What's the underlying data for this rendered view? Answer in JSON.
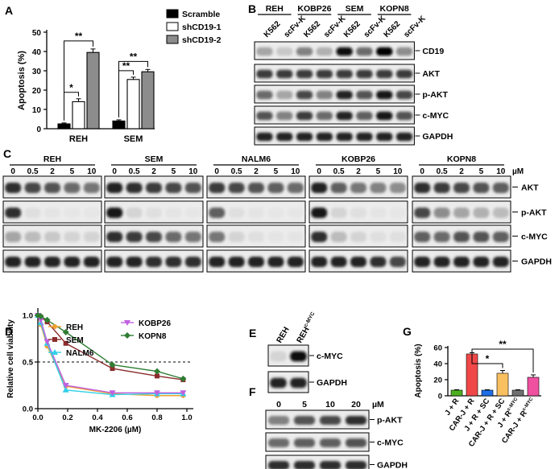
{
  "panels": {
    "A": "A",
    "B": "B",
    "C": "C",
    "D": "D",
    "E": "E",
    "F": "F",
    "G": "G"
  },
  "sig": {
    "one": "*",
    "two": "**"
  },
  "panel_A": {
    "chart_data": {
      "type": "bar",
      "categories": [
        "REH",
        "SEM"
      ],
      "series": [
        {
          "name": "Scramble",
          "values": [
            2.5,
            4
          ],
          "errors": [
            0.5,
            0.6
          ],
          "color": "#000000"
        },
        {
          "name": "shCD19-1",
          "values": [
            14,
            25.5
          ],
          "errors": [
            1.5,
            1.2
          ],
          "color": "#ffffff"
        },
        {
          "name": "shCD19-2",
          "values": [
            39.5,
            29.5
          ],
          "errors": [
            1.8,
            1.2
          ],
          "color": "#8c8c8c"
        }
      ],
      "ylabel": "Apoptosis (%)",
      "ylim": [
        0,
        50
      ],
      "yticks": [
        0,
        10,
        20,
        30,
        40,
        50
      ],
      "legend": "top-right",
      "significance": [
        {
          "category": "REH",
          "from": "Scramble",
          "to": "shCD19-1",
          "label": "*"
        },
        {
          "category": "REH",
          "from": "Scramble",
          "to": "shCD19-2",
          "label": "**"
        },
        {
          "category": "SEM",
          "from": "Scramble",
          "to": "shCD19-1",
          "label": "**"
        },
        {
          "category": "SEM",
          "from": "Scramble",
          "to": "shCD19-2",
          "label": "**"
        }
      ]
    }
  },
  "panel_B": {
    "cell_groups": [
      "REH",
      "KOBP26",
      "SEM",
      "KOPN8"
    ],
    "lanes": [
      "K562",
      "scFv-K",
      "K562",
      "scFv-K",
      "K562",
      "scFv-K",
      "K562",
      "scFv-K"
    ],
    "proteins": [
      "CD19",
      "AKT",
      "p-AKT",
      "c-MYC",
      "GAPDH"
    ],
    "band_intensity": [
      [
        0.3,
        0.15,
        0.45,
        0.25,
        0.95,
        0.55,
        0.98,
        0.4
      ],
      [
        0.75,
        0.75,
        0.75,
        0.75,
        0.75,
        0.75,
        0.75,
        0.75
      ],
      [
        0.55,
        0.3,
        0.7,
        0.45,
        0.85,
        0.65,
        0.9,
        0.7
      ],
      [
        0.65,
        0.45,
        0.75,
        0.55,
        0.85,
        0.6,
        0.9,
        0.65
      ],
      [
        0.85,
        0.85,
        0.85,
        0.85,
        0.85,
        0.85,
        0.85,
        0.85
      ]
    ]
  },
  "panel_C": {
    "cell_lines": [
      "REH",
      "SEM",
      "NALM6",
      "KOBP26",
      "KOPN8"
    ],
    "doses": [
      "0",
      "0.5",
      "2",
      "5",
      "10"
    ],
    "unit": "µM",
    "proteins": [
      "AKT",
      "p-AKT",
      "c-MYC",
      "GAPDH"
    ],
    "band_intensity": [
      [
        [
          0.8,
          0.7,
          0.65,
          0.55,
          0.5
        ],
        [
          0.85,
          0.8,
          0.75,
          0.7,
          0.65
        ],
        [
          0.75,
          0.7,
          0.65,
          0.6,
          0.55
        ],
        [
          0.85,
          0.6,
          0.5,
          0.45,
          0.4
        ],
        [
          0.8,
          0.75,
          0.7,
          0.65,
          0.6
        ]
      ],
      [
        [
          0.8,
          0.05,
          0.03,
          0.02,
          0.02
        ],
        [
          0.9,
          0.1,
          0.05,
          0.03,
          0.02
        ],
        [
          0.6,
          0.05,
          0.03,
          0.02,
          0.02
        ],
        [
          0.9,
          0.1,
          0.05,
          0.03,
          0.02
        ],
        [
          0.7,
          0.4,
          0.3,
          0.25,
          0.2
        ]
      ],
      [
        [
          0.3,
          0.2,
          0.15,
          0.1,
          0.1
        ],
        [
          0.8,
          0.75,
          0.7,
          0.55,
          0.5
        ],
        [
          0.5,
          0.1,
          0.05,
          0.03,
          0.03
        ],
        [
          0.8,
          0.2,
          0.1,
          0.05,
          0.05
        ],
        [
          0.6,
          0.55,
          0.65,
          0.65,
          0.6
        ]
      ],
      [
        [
          0.85,
          0.85,
          0.85,
          0.85,
          0.85
        ],
        [
          0.85,
          0.85,
          0.8,
          0.8,
          0.8
        ],
        [
          0.85,
          0.85,
          0.85,
          0.85,
          0.85
        ],
        [
          0.85,
          0.85,
          0.85,
          0.8,
          0.7
        ],
        [
          0.85,
          0.85,
          0.85,
          0.85,
          0.85
        ]
      ]
    ]
  },
  "panel_D": {
    "chart_data": {
      "type": "line",
      "xlabel": "MK-2206 (µM)",
      "ylabel": "Relative cell viability",
      "xlim": [
        0,
        1.0
      ],
      "ylim": [
        0,
        1.0
      ],
      "xticks": [
        "0.0",
        "0.2",
        "0.4",
        "0.6",
        "0.8",
        "1.0"
      ],
      "yticks": [
        "0.0",
        "0.5",
        "1.0"
      ],
      "reference_line": 0.5,
      "legend": "top-right",
      "x": [
        0,
        0.0195,
        0.0625,
        0.1875,
        0.5,
        0.8,
        0.975
      ],
      "series": [
        {
          "name": "REH",
          "color": "#f0a030",
          "marker": "circle",
          "values": [
            1.0,
            0.9,
            0.67,
            0.24,
            0.16,
            0.14,
            0.14
          ]
        },
        {
          "name": "SEM",
          "color": "#8b2c2c",
          "marker": "square",
          "values": [
            1.0,
            0.98,
            0.93,
            0.7,
            0.43,
            0.35,
            0.31
          ]
        },
        {
          "name": "NALM6",
          "color": "#30d0e8",
          "marker": "triangle-up",
          "values": [
            1.0,
            0.92,
            0.7,
            0.2,
            0.15,
            0.16,
            0.16
          ]
        },
        {
          "name": "KOBP26",
          "color": "#c060e0",
          "marker": "triangle-down",
          "values": [
            1.0,
            0.95,
            0.72,
            0.25,
            0.17,
            0.17,
            0.17
          ]
        },
        {
          "name": "KOPN8",
          "color": "#2e7d32",
          "marker": "diamond",
          "values": [
            1.0,
            0.99,
            0.95,
            0.82,
            0.47,
            0.4,
            0.32
          ]
        }
      ]
    }
  },
  "panel_E": {
    "lanes": [
      "REH",
      "REH"
    ],
    "lane2_superscript": "c-MYC",
    "proteins": [
      "c-MYC",
      "GAPDH"
    ],
    "band_intensity": [
      [
        0.1,
        0.95
      ],
      [
        0.85,
        0.85
      ]
    ]
  },
  "panel_F": {
    "doses": [
      "0",
      "5",
      "10",
      "20"
    ],
    "unit": "µM",
    "proteins": [
      "p-AKT",
      "c-MYC",
      "GAPDH"
    ],
    "band_intensity": [
      [
        0.45,
        0.65,
        0.7,
        0.8
      ],
      [
        0.55,
        0.6,
        0.6,
        0.65
      ],
      [
        0.8,
        0.8,
        0.8,
        0.8
      ]
    ]
  },
  "panel_G": {
    "chart_data": {
      "type": "bar",
      "categories": [
        "J + R",
        "CAR-J + R",
        "J + R + SC",
        "CAR-J + R + SC",
        "J + R",
        "CAR-J + R"
      ],
      "category_superscripts": [
        "",
        "",
        "",
        "",
        "c-MYC",
        "c-MYC"
      ],
      "values": [
        7,
        52,
        7,
        28,
        7,
        23
      ],
      "errors": [
        0.5,
        1.5,
        0.5,
        3.5,
        0.5,
        3
      ],
      "colors": [
        "#4caf20",
        "#f04848",
        "#1e6ee6",
        "#f8c060",
        "#707070",
        "#f050a0"
      ],
      "ylabel": "Apoptosis (%)",
      "ylim": [
        0,
        60
      ],
      "yticks": [
        0,
        20,
        40,
        60
      ],
      "significance": [
        {
          "from": 1,
          "to": 3,
          "label": "*"
        },
        {
          "from": 1,
          "to": 5,
          "label": "**"
        }
      ]
    }
  }
}
